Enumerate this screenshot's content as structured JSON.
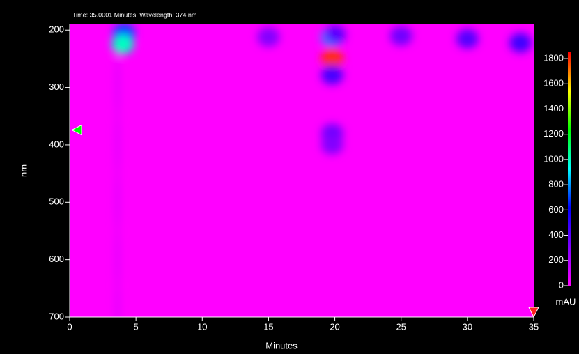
{
  "chart_data": {
    "type": "heatmap",
    "title": "Time: 35.0001 Minutes, Wavelength: 374 nm",
    "xlabel": "Minutes",
    "ylabel": "nm",
    "xlim": [
      0,
      35
    ],
    "ylim": [
      190,
      700
    ],
    "y_inverted": true,
    "xticks": [
      0,
      5,
      10,
      15,
      20,
      25,
      30,
      35
    ],
    "yticks": [
      200,
      300,
      400,
      500,
      600,
      700
    ],
    "background": "#ff00ff",
    "points": {
      "x": [
        4.1,
        4.0,
        19.8,
        19.8,
        19.8,
        19.8,
        19.8,
        15,
        20,
        25,
        30,
        34,
        3.6,
        3.6,
        3.6,
        3.6,
        3.6
      ],
      "y": [
        205,
        225,
        250,
        212,
        278,
        380,
        400,
        212,
        208,
        210,
        215,
        222,
        300,
        400,
        500,
        600,
        690
      ],
      "z": [
        700,
        1000,
        1800,
        800,
        450,
        350,
        300,
        300,
        400,
        350,
        420,
        470,
        90,
        90,
        90,
        90,
        90
      ]
    },
    "cursor": {
      "x": 35,
      "y": 374
    },
    "colorbar": {
      "label": "mAU",
      "clim": [
        0,
        1850
      ],
      "ticks": [
        0,
        200,
        400,
        600,
        800,
        1000,
        1200,
        1400,
        1600,
        1800
      ],
      "colors": [
        "#ff00ff",
        "#8000ff",
        "#0000ff",
        "#00ffff",
        "#00ff00",
        "#ffff00",
        "#ff0000"
      ]
    }
  }
}
